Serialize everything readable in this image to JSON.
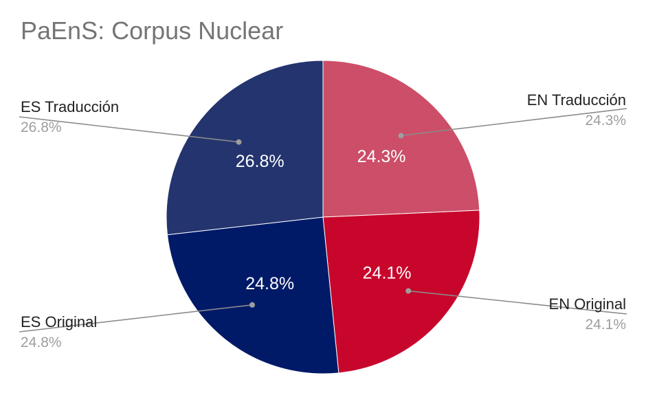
{
  "chart_data": {
    "type": "pie",
    "title": "PaEnS: Corpus Nuclear",
    "slices": [
      {
        "name": "EN Traducción",
        "value": 24.3,
        "label": "24.3%",
        "color": "#cc4e68"
      },
      {
        "name": "EN Original",
        "value": 24.1,
        "label": "24.1%",
        "color": "#c8062c"
      },
      {
        "name": "ES Original",
        "value": 24.8,
        "label": "24.8%",
        "color": "#001a68"
      },
      {
        "name": "ES Traducción",
        "value": 26.8,
        "label": "26.8%",
        "color": "#24346e"
      }
    ],
    "start_angle_deg": 0,
    "direction": "clockwise",
    "legend": "callouts"
  }
}
